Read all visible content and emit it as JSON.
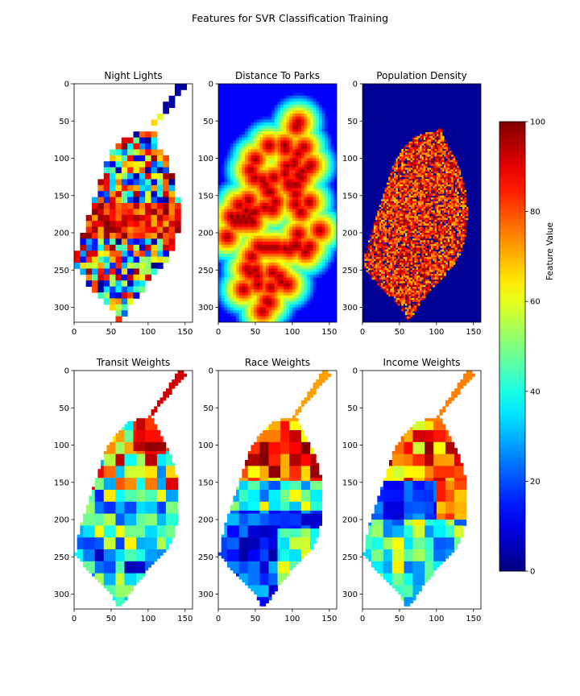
{
  "figure": {
    "suptitle": "Features for SVR Classification Training"
  },
  "chart_data": {
    "type": "heatmap",
    "panels": [
      {
        "title": "Night Lights",
        "xlim": [
          0,
          160
        ],
        "ylim": [
          320,
          0
        ],
        "xticks": [
          0,
          50,
          100,
          150
        ],
        "yticks": [
          0,
          50,
          100,
          150,
          200,
          250,
          300
        ],
        "pattern": "grid",
        "value_range": [
          0,
          100
        ]
      },
      {
        "title": "Distance To Parks",
        "xlim": [
          0,
          160
        ],
        "ylim": [
          320,
          0
        ],
        "xticks": [
          0,
          50,
          100,
          150
        ],
        "yticks": [
          0,
          50,
          100,
          150,
          200,
          250,
          300
        ],
        "pattern": "distance",
        "value_range": [
          0,
          100
        ]
      },
      {
        "title": "Population Density",
        "xlim": [
          0,
          160
        ],
        "ylim": [
          320,
          0
        ],
        "xticks": [
          0,
          50,
          100,
          150
        ],
        "yticks": [
          0,
          50,
          100,
          150,
          200,
          250,
          300
        ],
        "pattern": "density",
        "value_range": [
          0,
          100
        ]
      },
      {
        "title": "Transit Weights",
        "xlim": [
          0,
          160
        ],
        "ylim": [
          320,
          0
        ],
        "xticks": [
          0,
          50,
          100,
          150
        ],
        "yticks": [
          0,
          50,
          100,
          150,
          200,
          250,
          300
        ],
        "pattern": "transit",
        "value_range": [
          0,
          100
        ]
      },
      {
        "title": "Race Weights",
        "xlim": [
          0,
          160
        ],
        "ylim": [
          320,
          0
        ],
        "xticks": [
          0,
          50,
          100,
          150
        ],
        "yticks": [
          0,
          50,
          100,
          150,
          200,
          250,
          300
        ],
        "pattern": "race",
        "value_range": [
          0,
          100
        ]
      },
      {
        "title": "Income Weights",
        "xlim": [
          0,
          160
        ],
        "ylim": [
          320,
          0
        ],
        "xticks": [
          0,
          50,
          100,
          150
        ],
        "yticks": [
          0,
          50,
          100,
          150,
          200,
          250,
          300
        ],
        "pattern": "income",
        "value_range": [
          0,
          100
        ]
      }
    ],
    "colorbar": {
      "label": "Feature Value",
      "range": [
        0,
        100
      ],
      "ticks": [
        0,
        20,
        40,
        60,
        80,
        100
      ],
      "colormap": "jet"
    },
    "region_outline": [
      [
        141,
        0
      ],
      [
        153,
        3
      ],
      [
        146,
        14
      ],
      [
        134,
        26
      ],
      [
        124,
        38
      ],
      [
        114,
        50
      ],
      [
        106,
        62
      ],
      [
        112,
        78
      ],
      [
        124,
        98
      ],
      [
        134,
        122
      ],
      [
        140,
        148
      ],
      [
        142,
        174
      ],
      [
        140,
        200
      ],
      [
        134,
        224
      ],
      [
        124,
        242
      ],
      [
        110,
        258
      ],
      [
        96,
        272
      ],
      [
        84,
        286
      ],
      [
        74,
        300
      ],
      [
        66,
        314
      ],
      [
        60,
        318
      ],
      [
        54,
        306
      ],
      [
        44,
        292
      ],
      [
        28,
        276
      ],
      [
        14,
        262
      ],
      [
        2,
        246
      ],
      [
        4,
        226
      ],
      [
        10,
        206
      ],
      [
        18,
        180
      ],
      [
        26,
        156
      ],
      [
        34,
        132
      ],
      [
        42,
        108
      ],
      [
        54,
        88
      ],
      [
        68,
        72
      ],
      [
        86,
        66
      ],
      [
        98,
        64
      ],
      [
        108,
        50
      ],
      [
        120,
        32
      ],
      [
        130,
        16
      ]
    ]
  }
}
